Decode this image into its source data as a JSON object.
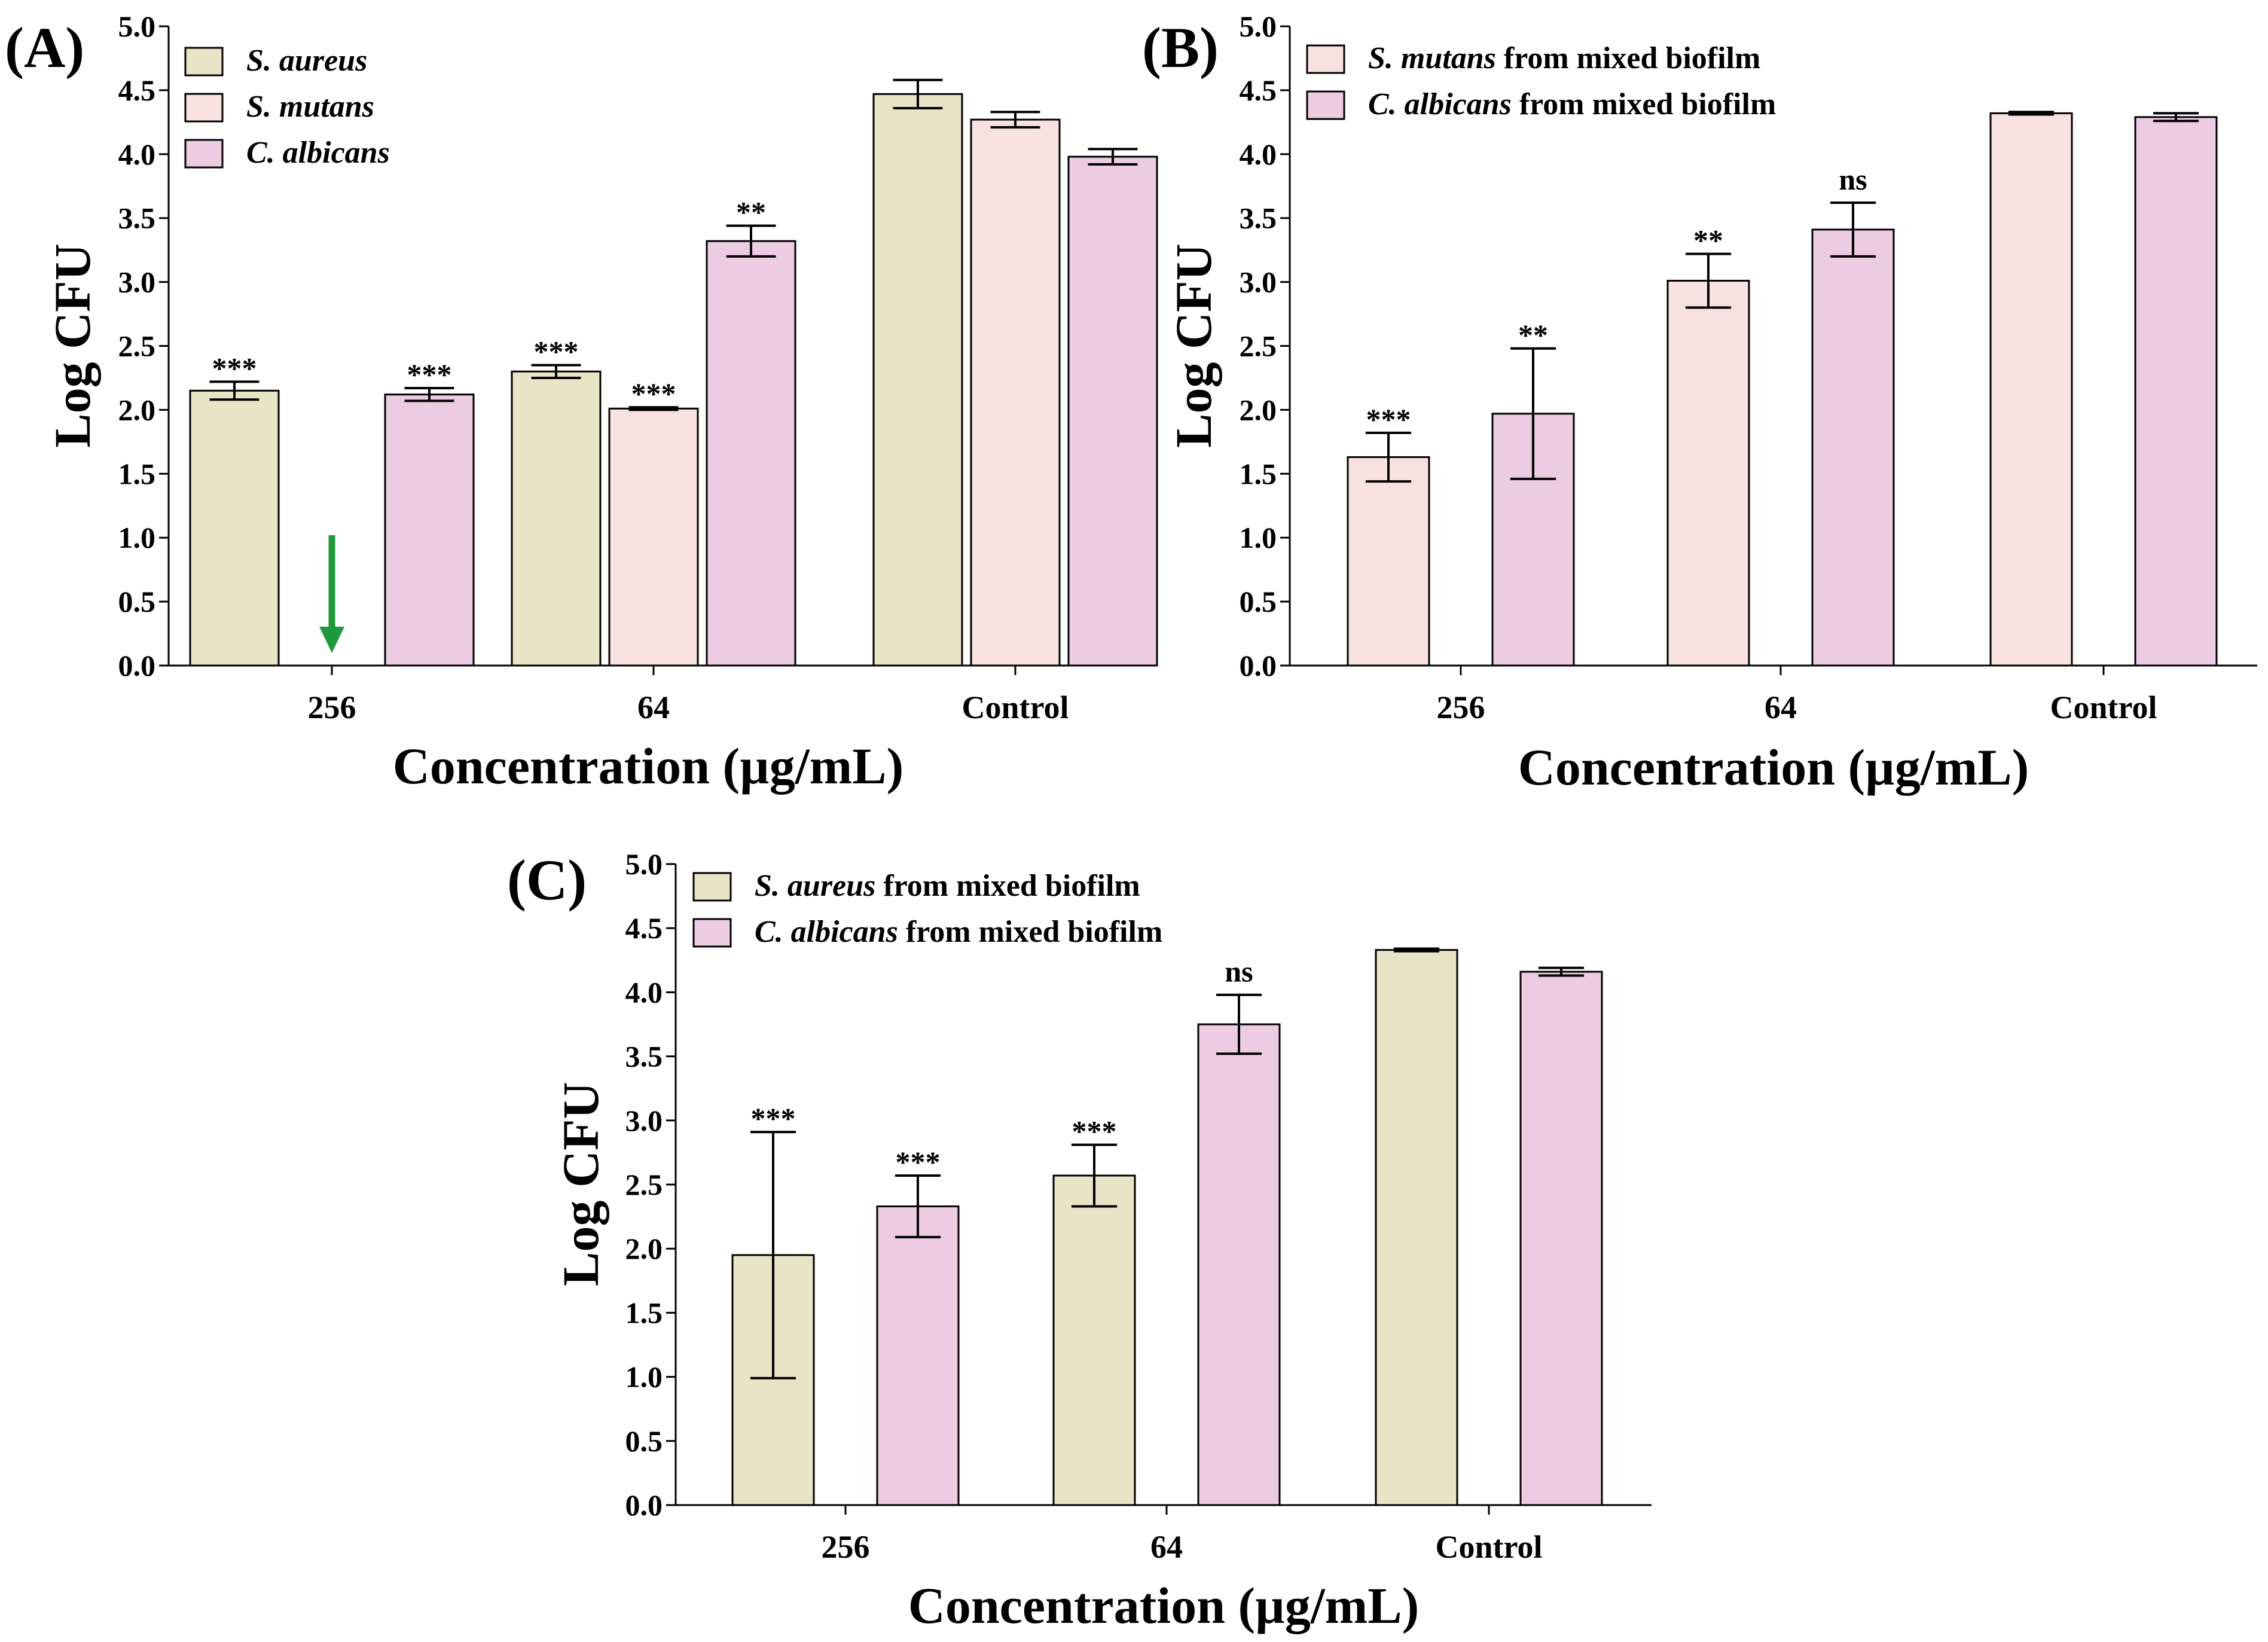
{
  "colors": {
    "s_aureus": "#EAE4C7",
    "s_mutans": "#F7E2E0",
    "c_albicans": "#EDCBE2",
    "arrow": "#1F9A3A"
  },
  "chart_data": [
    {
      "type": "bar",
      "panel": "(A)",
      "categories": [
        "256",
        "64",
        "Control"
      ],
      "xlabel": "Concentration (µg/mL)",
      "ylabel": "Log CFU",
      "ylim": [
        0,
        5.0
      ],
      "yticks": [
        "0.0",
        "0.5",
        "1.0",
        "1.5",
        "2.0",
        "2.5",
        "3.0",
        "3.5",
        "4.0",
        "4.5",
        "5.0"
      ],
      "legend_position": "top-left",
      "series": [
        {
          "name": "S. aureus",
          "suffix": "",
          "color_key": "s_aureus",
          "values": [
            2.15,
            2.3,
            4.47
          ],
          "errors": [
            0.07,
            0.05,
            0.11
          ],
          "significance": [
            "***",
            "***",
            ""
          ]
        },
        {
          "name": "S. mutans",
          "suffix": "",
          "color_key": "s_mutans",
          "values": [
            null,
            2.01,
            4.27
          ],
          "errors": [
            null,
            0.01,
            0.06
          ],
          "significance": [
            "",
            "***",
            ""
          ]
        },
        {
          "name": "C. albicans",
          "suffix": "",
          "color_key": "c_albicans",
          "values": [
            2.12,
            3.32,
            3.98
          ],
          "errors": [
            0.05,
            0.12,
            0.06
          ],
          "significance": [
            "***",
            "**",
            ""
          ]
        }
      ],
      "annotations": [
        {
          "type": "arrow",
          "category": "256",
          "series": "S. mutans",
          "meaning": "no growth"
        }
      ]
    },
    {
      "type": "bar",
      "panel": "(B)",
      "categories": [
        "256",
        "64",
        "Control"
      ],
      "xlabel": "Concentration (µg/mL)",
      "ylabel": "Log CFU",
      "ylim": [
        0,
        5.0
      ],
      "yticks": [
        "0.0",
        "0.5",
        "1.0",
        "1.5",
        "2.0",
        "2.5",
        "3.0",
        "3.5",
        "4.0",
        "4.5",
        "5.0"
      ],
      "legend_position": "top-left",
      "series": [
        {
          "name": "S. mutans",
          "suffix": " from mixed biofilm",
          "color_key": "s_mutans",
          "values": [
            1.63,
            3.01,
            4.32
          ],
          "errors": [
            0.19,
            0.21,
            0.01
          ],
          "significance": [
            "***",
            "**",
            ""
          ]
        },
        {
          "name": "C. albicans",
          "suffix": " from mixed biofilm",
          "color_key": "c_albicans",
          "values": [
            1.97,
            3.41,
            4.29
          ],
          "errors": [
            0.51,
            0.21,
            0.03
          ],
          "significance": [
            "**",
            "ns",
            ""
          ]
        }
      ]
    },
    {
      "type": "bar",
      "panel": "(C)",
      "categories": [
        "256",
        "64",
        "Control"
      ],
      "xlabel": "Concentration (µg/mL)",
      "ylabel": "Log CFU",
      "ylim": [
        0,
        5.0
      ],
      "yticks": [
        "0.0",
        "0.5",
        "1.0",
        "1.5",
        "2.0",
        "2.5",
        "3.0",
        "3.5",
        "4.0",
        "4.5",
        "5.0"
      ],
      "legend_position": "top-left",
      "series": [
        {
          "name": "S. aureus",
          "suffix": " from mixed biofilm",
          "color_key": "s_aureus",
          "values": [
            1.95,
            2.57,
            4.33
          ],
          "errors": [
            0.96,
            0.24,
            0.01
          ],
          "significance": [
            "***",
            "***",
            ""
          ]
        },
        {
          "name": "C. albicans",
          "suffix": " from mixed biofilm",
          "color_key": "c_albicans",
          "values": [
            2.33,
            3.75,
            4.16
          ],
          "errors": [
            0.24,
            0.23,
            0.03
          ],
          "significance": [
            "***",
            "ns",
            ""
          ]
        }
      ]
    }
  ]
}
